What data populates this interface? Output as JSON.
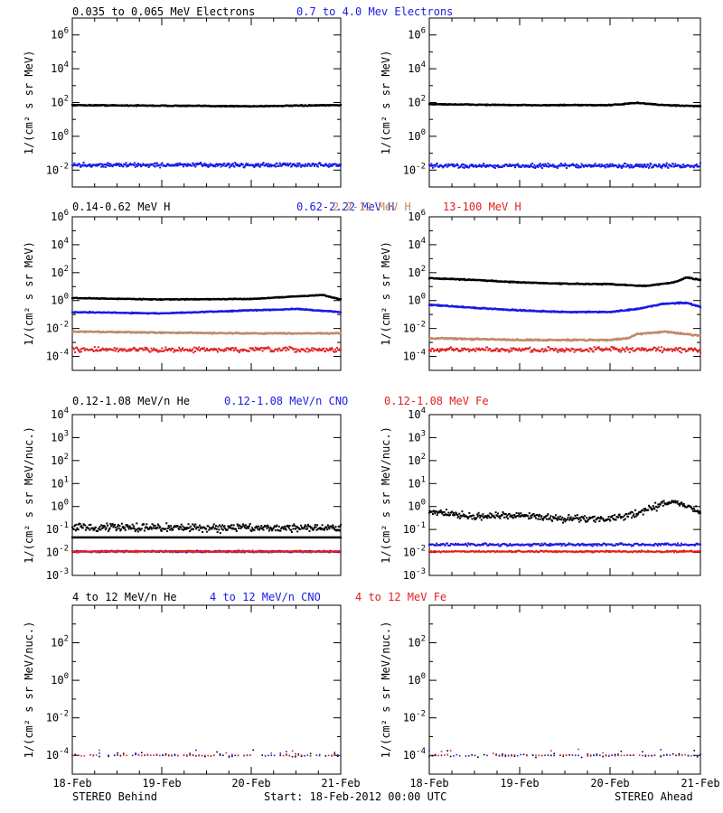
{
  "colors": {
    "black": "#000000",
    "blue": "#1a1ae6",
    "tan": "#c08a6a",
    "red": "#e02020"
  },
  "footer": {
    "left": "STEREO Behind",
    "center": "Start: 18-Feb-2012 00:00 UTC",
    "right": "STEREO Ahead"
  },
  "x_tick_labels": [
    "18-Feb",
    "19-Feb",
    "20-Feb",
    "21-Feb"
  ],
  "rows": [
    {
      "titles": [
        {
          "text": "0.035 to 0.065 MeV Electrons",
          "color": "black"
        },
        {
          "text": "0.7 to 4.0 Mev Electrons",
          "color": "blue"
        }
      ]
    },
    {
      "titles": [
        {
          "text": "0.14-0.62 MeV H",
          "color": "black"
        },
        {
          "text": "0.62-2.22 MeV H",
          "color": "blue"
        },
        {
          "text": "2.2-12 MeV H",
          "color": "tan"
        },
        {
          "text": "13-100 MeV H",
          "color": "red"
        }
      ]
    },
    {
      "titles": [
        {
          "text": "0.12-1.08 MeV/n He",
          "color": "black"
        },
        {
          "text": "0.12-1.08 MeV/n CNO",
          "color": "blue"
        },
        {
          "text": "0.12-1.08 MeV Fe",
          "color": "red"
        }
      ]
    },
    {
      "titles": [
        {
          "text": "4 to 12 MeV/n He",
          "color": "black"
        },
        {
          "text": "4 to 12 MeV/n CNO",
          "color": "blue"
        },
        {
          "text": "4 to 12 MeV Fe",
          "color": "red"
        }
      ]
    }
  ],
  "chart_data": [
    {
      "type": "scatter",
      "panel": "electrons-behind",
      "row": 0,
      "col": 0,
      "xlim": [
        0,
        3
      ],
      "x_unit": "days since 18-Feb-2012 00:00 UTC",
      "y_log": true,
      "ylim": [
        0.001,
        10000000
      ],
      "ylabel": "1/(cm² s sr MeV)",
      "ytick_exps": [
        -2,
        0,
        2,
        4,
        6
      ],
      "series": [
        {
          "name": "0.035 to 0.065 MeV Electrons",
          "color": "black",
          "style": "line",
          "x": [
            0,
            1,
            2,
            2.5,
            3
          ],
          "y": [
            70,
            65,
            60,
            65,
            70
          ],
          "noise": 0.04
        },
        {
          "name": "0.7 to 4.0 Mev Electrons",
          "color": "blue",
          "style": "dots",
          "x": [
            0,
            3
          ],
          "y": [
            0.02,
            0.02
          ],
          "noise": 0.18
        }
      ]
    },
    {
      "type": "scatter",
      "panel": "electrons-ahead",
      "row": 0,
      "col": 1,
      "xlim": [
        0,
        3
      ],
      "x_unit": "days since 18-Feb-2012 00:00 UTC",
      "y_log": true,
      "ylim": [
        0.001,
        10000000
      ],
      "ylabel": "1/(cm² s sr MeV)",
      "ytick_exps": [
        -2,
        0,
        2,
        4,
        6
      ],
      "series": [
        {
          "name": "0.035 to 0.065 MeV Electrons",
          "color": "black",
          "style": "line",
          "x": [
            0,
            1,
            2,
            2.3,
            2.6,
            3
          ],
          "y": [
            80,
            70,
            70,
            95,
            70,
            60
          ],
          "noise": 0.04
        },
        {
          "name": "0.7 to 4.0 Mev Electrons",
          "color": "blue",
          "style": "dots",
          "x": [
            0,
            3
          ],
          "y": [
            0.018,
            0.018
          ],
          "noise": 0.18
        }
      ]
    },
    {
      "type": "scatter",
      "panel": "protons-behind",
      "row": 1,
      "col": 0,
      "xlim": [
        0,
        3
      ],
      "x_unit": "days since 18-Feb-2012 00:00 UTC",
      "y_log": true,
      "ylim": [
        1e-05,
        1000000
      ],
      "ylabel": "1/(cm² s sr MeV)",
      "ytick_exps": [
        -4,
        -2,
        0,
        2,
        4,
        6
      ],
      "series": [
        {
          "name": "0.14-0.62 MeV H",
          "color": "black",
          "style": "line",
          "x": [
            0,
            1,
            2,
            2.5,
            2.8,
            3
          ],
          "y": [
            1.5,
            1.2,
            1.3,
            2.0,
            2.5,
            1.2
          ],
          "noise": 0.04
        },
        {
          "name": "0.62-2.22 MeV H",
          "color": "blue",
          "style": "line",
          "x": [
            0,
            1,
            2,
            2.5,
            3
          ],
          "y": [
            0.15,
            0.12,
            0.2,
            0.25,
            0.15
          ],
          "noise": 0.05
        },
        {
          "name": "2.2-12 MeV H",
          "color": "tan",
          "style": "line",
          "x": [
            0,
            1,
            2,
            3
          ],
          "y": [
            0.006,
            0.005,
            0.0045,
            0.0045
          ],
          "noise": 0.06
        },
        {
          "name": "13-100 MeV H",
          "color": "red",
          "style": "band",
          "x": [
            0,
            3
          ],
          "y": [
            0.0003,
            0.0003
          ],
          "noise": 0.25
        }
      ]
    },
    {
      "type": "scatter",
      "panel": "protons-ahead",
      "row": 1,
      "col": 1,
      "xlim": [
        0,
        3
      ],
      "x_unit": "days since 18-Feb-2012 00:00 UTC",
      "y_log": true,
      "ylim": [
        1e-05,
        1000000
      ],
      "ylabel": "1/(cm² s sr MeV)",
      "ytick_exps": [
        -4,
        -2,
        0,
        2,
        4,
        6
      ],
      "series": [
        {
          "name": "0.14-0.62 MeV H",
          "color": "black",
          "style": "line",
          "x": [
            0,
            0.5,
            1,
            1.5,
            2,
            2.4,
            2.7,
            2.85,
            3
          ],
          "y": [
            40,
            30,
            20,
            16,
            15,
            11,
            20,
            45,
            30
          ],
          "noise": 0.05
        },
        {
          "name": "0.62-2.22 MeV H",
          "color": "blue",
          "style": "line",
          "x": [
            0,
            0.5,
            1,
            1.5,
            2,
            2.3,
            2.6,
            2.85,
            3
          ],
          "y": [
            0.5,
            0.3,
            0.2,
            0.15,
            0.15,
            0.25,
            0.6,
            0.7,
            0.35
          ],
          "noise": 0.06
        },
        {
          "name": "2.2-12 MeV H",
          "color": "tan",
          "style": "line",
          "x": [
            0,
            1,
            2,
            2.2,
            2.3,
            2.6,
            3
          ],
          "y": [
            0.002,
            0.0015,
            0.0015,
            0.002,
            0.004,
            0.006,
            0.003
          ],
          "noise": 0.08
        },
        {
          "name": "13-100 MeV H",
          "color": "red",
          "style": "band",
          "x": [
            0,
            3
          ],
          "y": [
            0.0003,
            0.0003
          ],
          "noise": 0.25
        }
      ]
    },
    {
      "type": "scatter",
      "panel": "heavy-ions-low-behind",
      "row": 2,
      "col": 0,
      "xlim": [
        0,
        3
      ],
      "x_unit": "days since 18-Feb-2012 00:00 UTC",
      "y_log": true,
      "ylim": [
        0.001,
        10000
      ],
      "ylabel": "1/(cm² s sr MeV/nuc.)",
      "ytick_exps": [
        -3,
        -2,
        -1,
        0,
        1,
        2,
        3,
        4
      ],
      "series": [
        {
          "name": "0.12-1.08 MeV/n He",
          "color": "black",
          "style": "dots",
          "x": [
            0,
            3
          ],
          "y": [
            0.12,
            0.12
          ],
          "noise": 0.25
        },
        {
          "name": "0.12-1.08 MeV/n He baseline",
          "color": "black",
          "style": "line",
          "x": [
            0,
            3
          ],
          "y": [
            0.045,
            0.045
          ],
          "noise": 0.0
        },
        {
          "name": "0.12-1.08 MeV/n CNO",
          "color": "blue",
          "style": "band",
          "x": [
            0,
            3
          ],
          "y": [
            0.011,
            0.011
          ],
          "noise": 0.05
        },
        {
          "name": "0.12-1.08 MeV Fe",
          "color": "red",
          "style": "band",
          "x": [
            0,
            3
          ],
          "y": [
            0.011,
            0.011
          ],
          "noise": 0.05
        }
      ]
    },
    {
      "type": "scatter",
      "panel": "heavy-ions-low-ahead",
      "row": 2,
      "col": 1,
      "xlim": [
        0,
        3
      ],
      "x_unit": "days since 18-Feb-2012 00:00 UTC",
      "y_log": true,
      "ylim": [
        0.001,
        10000
      ],
      "ylabel": "1/(cm² s sr MeV/nuc.)",
      "ytick_exps": [
        -3,
        -2,
        -1,
        0,
        1,
        2,
        3,
        4
      ],
      "series": [
        {
          "name": "0.12-1.08 MeV/n He",
          "color": "black",
          "style": "dots",
          "x": [
            0,
            0.5,
            1,
            1.5,
            2,
            2.3,
            2.6,
            2.75,
            2.9,
            3
          ],
          "y": [
            0.6,
            0.35,
            0.4,
            0.3,
            0.3,
            0.5,
            1.3,
            1.6,
            0.8,
            0.6
          ],
          "noise": 0.22
        },
        {
          "name": "0.12-1.08 MeV/n CNO",
          "color": "blue",
          "style": "band",
          "x": [
            0,
            3
          ],
          "y": [
            0.022,
            0.022
          ],
          "noise": 0.08
        },
        {
          "name": "0.12-1.08 MeV Fe",
          "color": "red",
          "style": "band",
          "x": [
            0,
            3
          ],
          "y": [
            0.011,
            0.011
          ],
          "noise": 0.05
        }
      ]
    },
    {
      "type": "scatter",
      "panel": "heavy-ions-high-behind",
      "row": 3,
      "col": 0,
      "xlim": [
        0,
        3
      ],
      "x_unit": "days since 18-Feb-2012 00:00 UTC",
      "y_log": true,
      "ylim": [
        1e-05,
        10000
      ],
      "ylabel": "1/(cm² s sr MeV/nuc.)",
      "ytick_exps": [
        -4,
        -2,
        0,
        2
      ],
      "series": [
        {
          "name": "4 to 12 MeV/n He",
          "color": "black",
          "style": "sparse",
          "x": [
            0,
            3
          ],
          "y": [
            0.0001,
            0.0001
          ],
          "noise": 0.15
        },
        {
          "name": "4 to 12 MeV/n CNO",
          "color": "blue",
          "style": "sparse",
          "x": [
            0,
            3
          ],
          "y": [
            0.0001,
            0.0001
          ],
          "noise": 0.05
        },
        {
          "name": "4 to 12 MeV Fe",
          "color": "red",
          "style": "sparse",
          "x": [
            0,
            3
          ],
          "y": [
            0.0001,
            0.0001
          ],
          "noise": 0.05
        }
      ]
    },
    {
      "type": "scatter",
      "panel": "heavy-ions-high-ahead",
      "row": 3,
      "col": 1,
      "xlim": [
        0,
        3
      ],
      "x_unit": "days since 18-Feb-2012 00:00 UTC",
      "y_log": true,
      "ylim": [
        1e-05,
        10000
      ],
      "ylabel": "1/(cm² s sr MeV/nuc.)",
      "ytick_exps": [
        -4,
        -2,
        0,
        2
      ],
      "series": [
        {
          "name": "4 to 12 MeV/n He",
          "color": "black",
          "style": "sparse",
          "x": [
            0,
            3
          ],
          "y": [
            0.0001,
            0.0001
          ],
          "noise": 0.15
        },
        {
          "name": "4 to 12 MeV/n CNO",
          "color": "blue",
          "style": "sparse",
          "x": [
            0,
            3
          ],
          "y": [
            0.0001,
            0.0001
          ],
          "noise": 0.05
        },
        {
          "name": "4 to 12 MeV Fe",
          "color": "red",
          "style": "sparse",
          "x": [
            0,
            3
          ],
          "y": [
            0.0001,
            0.0001
          ],
          "noise": 0.05
        }
      ]
    }
  ]
}
